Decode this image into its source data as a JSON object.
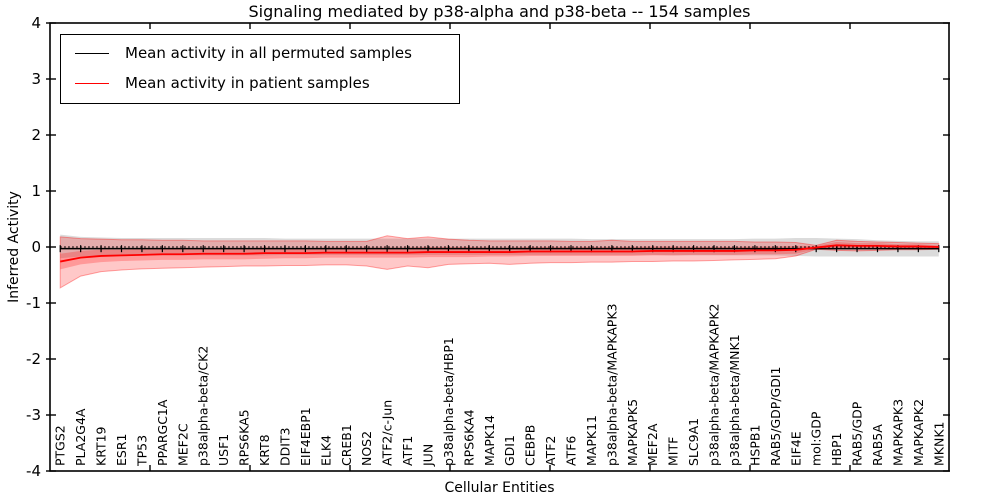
{
  "title": "Signaling mediated by p38-alpha and p38-beta -- 154 samples",
  "colors": {
    "patient_line": "#ff0000",
    "permuted_line": "#000000",
    "patient_band": "#f4a7a7",
    "permuted_band": "#dcdcdc",
    "axis": "#000000",
    "background": "#ffffff"
  },
  "legend": {
    "items": [
      {
        "label": "Mean activity in all permuted samples",
        "color": "#000000"
      },
      {
        "label": "Mean activity in patient samples",
        "color": "#ff0000"
      }
    ]
  },
  "chart_data": {
    "type": "line",
    "title": "Signaling mediated by p38-alpha and p38-beta -- 154 samples",
    "xlabel": "Cellular Entities",
    "ylabel": "Inferred Activity",
    "ylim": [
      -4,
      4
    ],
    "yticks": [
      4,
      3,
      2,
      1,
      0,
      -1,
      -2,
      -3,
      -4
    ],
    "grid": false,
    "legend_position": "upper left",
    "zero_line": 0,
    "categories": [
      "PTGS2",
      "PLA2G4A",
      "KRT19",
      "ESR1",
      "TP53",
      "PPARGC1A",
      "MEF2C",
      "p38alpha-beta/CK2",
      "USF1",
      "RPS6KA5",
      "KRT8",
      "DDIT3",
      "EIF4EBP1",
      "ELK4",
      "CREB1",
      "NOS2",
      "ATF2/c-Jun",
      "ATF1",
      "JUN",
      "p38alpha-beta/HBP1",
      "RPS6KA4",
      "MAPK14",
      "GDI1",
      "CEBPB",
      "ATF2",
      "ATF6",
      "MAPK11",
      "p38alpha-beta/MAPKAPK3",
      "MAPKAPK5",
      "MEF2A",
      "MITF",
      "SLC9A1",
      "p38alpha-beta/MAPKAPK2",
      "p38alpha-beta/MNK1",
      "HSPB1",
      "RAB5/GDP/GDI1",
      "EIF4E",
      "mol:GDP",
      "HBP1",
      "RAB5/GDP",
      "RAB5A",
      "MAPKAPK3",
      "MAPKAPK2",
      "MKNK1"
    ],
    "series": [
      {
        "name": "Mean activity in all permuted samples",
        "color": "#000000",
        "values": [
          -0.03,
          -0.03,
          -0.03,
          -0.03,
          -0.03,
          -0.03,
          -0.03,
          -0.03,
          -0.03,
          -0.03,
          -0.03,
          -0.03,
          -0.03,
          -0.03,
          -0.03,
          -0.03,
          -0.03,
          -0.03,
          -0.03,
          -0.03,
          -0.03,
          -0.03,
          -0.03,
          -0.03,
          -0.03,
          -0.03,
          -0.03,
          -0.03,
          -0.03,
          -0.03,
          -0.03,
          -0.03,
          -0.03,
          -0.03,
          -0.03,
          -0.03,
          -0.03,
          -0.03,
          -0.03,
          -0.03,
          -0.03,
          -0.03,
          -0.03,
          -0.03
        ],
        "band_high": [
          0.22,
          0.18,
          0.17,
          0.16,
          0.16,
          0.16,
          0.16,
          0.16,
          0.16,
          0.16,
          0.16,
          0.15,
          0.15,
          0.15,
          0.15,
          0.15,
          0.15,
          0.15,
          0.15,
          0.15,
          0.15,
          0.15,
          0.15,
          0.15,
          0.15,
          0.15,
          0.14,
          0.14,
          0.14,
          0.14,
          0.14,
          0.14,
          0.14,
          0.14,
          0.15,
          0.15,
          0.16,
          0.16,
          0.15,
          0.14,
          0.12,
          0.11,
          0.1,
          0.1
        ],
        "band_low": [
          -0.2,
          -0.17,
          -0.15,
          -0.15,
          -0.15,
          -0.15,
          -0.15,
          -0.15,
          -0.15,
          -0.15,
          -0.15,
          -0.14,
          -0.14,
          -0.14,
          -0.14,
          -0.14,
          -0.14,
          -0.14,
          -0.14,
          -0.14,
          -0.14,
          -0.14,
          -0.14,
          -0.14,
          -0.14,
          -0.14,
          -0.14,
          -0.14,
          -0.14,
          -0.14,
          -0.15,
          -0.15,
          -0.15,
          -0.15,
          -0.15,
          -0.15,
          -0.16,
          -0.17,
          -0.17,
          -0.17,
          -0.17,
          -0.17,
          -0.17,
          -0.17
        ]
      },
      {
        "name": "Mean activity in patient samples",
        "color": "#ff0000",
        "values": [
          -0.26,
          -0.19,
          -0.16,
          -0.15,
          -0.14,
          -0.13,
          -0.13,
          -0.12,
          -0.12,
          -0.12,
          -0.11,
          -0.11,
          -0.11,
          -0.1,
          -0.1,
          -0.1,
          -0.1,
          -0.1,
          -0.09,
          -0.09,
          -0.09,
          -0.09,
          -0.09,
          -0.08,
          -0.08,
          -0.08,
          -0.08,
          -0.08,
          -0.08,
          -0.07,
          -0.07,
          -0.07,
          -0.07,
          -0.07,
          -0.06,
          -0.06,
          -0.05,
          -0.01,
          0.03,
          0.02,
          0.02,
          0.01,
          0.01,
          0.0
        ],
        "band_high": [
          0.18,
          0.15,
          0.14,
          0.13,
          0.13,
          0.12,
          0.12,
          0.11,
          0.11,
          0.11,
          0.11,
          0.11,
          0.11,
          0.1,
          0.1,
          0.1,
          0.2,
          0.15,
          0.18,
          0.14,
          0.12,
          0.11,
          0.11,
          0.11,
          0.11,
          0.1,
          0.1,
          0.12,
          0.1,
          0.1,
          0.1,
          0.1,
          0.1,
          0.1,
          0.09,
          0.09,
          0.08,
          0.03,
          0.12,
          0.1,
          0.09,
          0.08,
          0.07,
          0.06
        ],
        "band_low": [
          -0.73,
          -0.52,
          -0.44,
          -0.41,
          -0.39,
          -0.38,
          -0.37,
          -0.36,
          -0.35,
          -0.34,
          -0.34,
          -0.33,
          -0.33,
          -0.32,
          -0.32,
          -0.34,
          -0.4,
          -0.34,
          -0.37,
          -0.31,
          -0.3,
          -0.29,
          -0.31,
          -0.29,
          -0.28,
          -0.28,
          -0.27,
          -0.27,
          -0.26,
          -0.26,
          -0.25,
          -0.25,
          -0.24,
          -0.23,
          -0.22,
          -0.21,
          -0.16,
          -0.04,
          -0.06,
          -0.07,
          -0.06,
          -0.05,
          -0.05,
          -0.04
        ],
        "inner_band_high": [
          -0.12,
          -0.07,
          -0.05,
          -0.05,
          -0.04,
          -0.03,
          -0.03,
          -0.02,
          -0.02,
          -0.02,
          -0.01,
          -0.02,
          -0.02,
          -0.01,
          -0.01,
          -0.01,
          -0.01,
          -0.01,
          0.0,
          0.0,
          0.0,
          -0.01,
          -0.01,
          0.0,
          0.0,
          0.0,
          0.0,
          0.0,
          0.0,
          0.01,
          0.01,
          0.0,
          0.0,
          0.0,
          0.01,
          0.01,
          0.02,
          0.02,
          0.09,
          0.07,
          0.07,
          0.05,
          0.05,
          0.03
        ],
        "inner_band_low": [
          -0.4,
          -0.31,
          -0.27,
          -0.25,
          -0.24,
          -0.23,
          -0.23,
          -0.22,
          -0.22,
          -0.22,
          -0.21,
          -0.2,
          -0.2,
          -0.19,
          -0.19,
          -0.19,
          -0.19,
          -0.19,
          -0.18,
          -0.18,
          -0.18,
          -0.17,
          -0.17,
          -0.16,
          -0.16,
          -0.16,
          -0.16,
          -0.16,
          -0.16,
          -0.15,
          -0.15,
          -0.14,
          -0.14,
          -0.14,
          -0.13,
          -0.13,
          -0.12,
          -0.04,
          -0.03,
          -0.03,
          -0.03,
          -0.03,
          -0.03,
          -0.03
        ]
      }
    ]
  }
}
